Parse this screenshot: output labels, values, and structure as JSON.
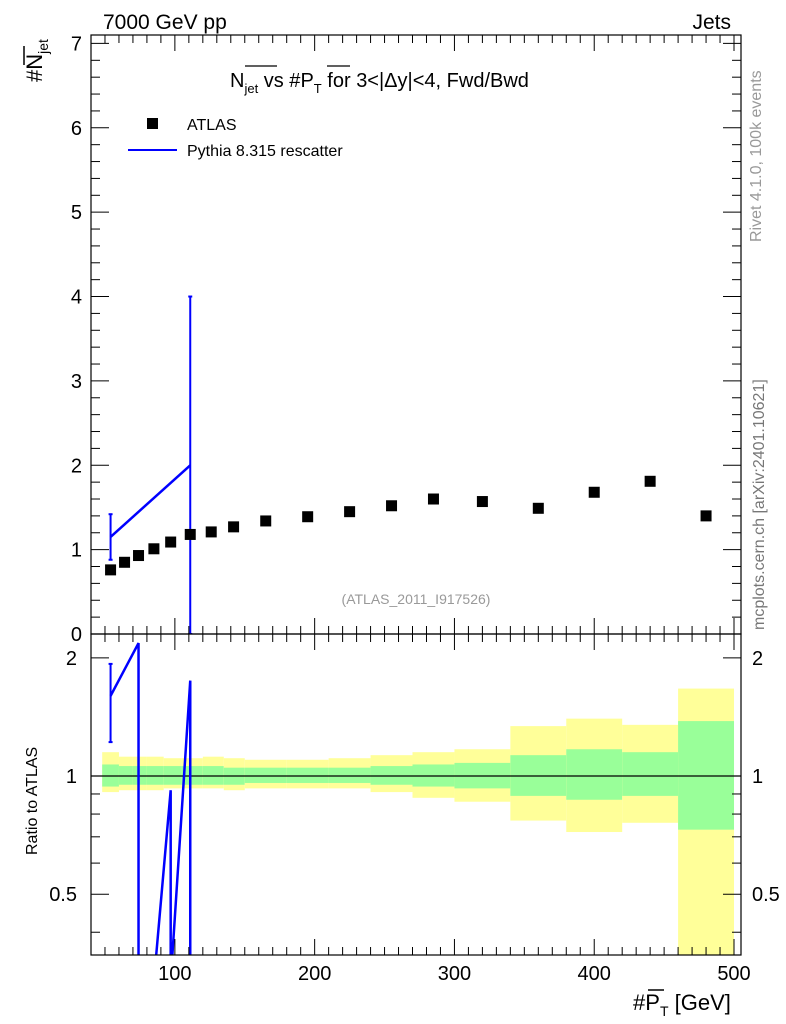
{
  "header": {
    "left": "7000 GeV pp",
    "right": "Jets"
  },
  "side_labels": {
    "rivet": "Rivet 4.1.0,  100k events",
    "mcplots": "mcplots.cern.ch [arXiv:2401.10621]"
  },
  "colors": {
    "data": "#000000",
    "mc": "#0000ff",
    "band_inner": "#99ff99",
    "band_outer": "#ffff99",
    "watermark": "#999999"
  },
  "chart_data": {
    "type": "scatter",
    "analysis_label": "(ATLAS_2011_I917526)",
    "title": {
      "hash1": "#",
      "nbar": "N",
      "nbar_sub": "jet",
      "mid": " vs #",
      "pbar": "P",
      "pbar_sub": "T",
      "tail": " for 3<|Δy|<4, Fwd/Bwd"
    },
    "ylabel": {
      "hash": "#",
      "n": "N",
      "sub": "jet"
    },
    "xlabel": {
      "hash": "#",
      "p": "P",
      "sub": "T",
      "unit": " [GeV]"
    },
    "ratio_ylabel": "Ratio to ATLAS",
    "xlim": [
      40,
      505
    ],
    "ylim": [
      0,
      7.1
    ],
    "ratio_ylim": [
      0.35,
      2.3
    ],
    "x_ticks": [
      100,
      200,
      300,
      400,
      500
    ],
    "y_ticks": [
      0,
      1,
      2,
      3,
      4,
      5,
      6,
      7
    ],
    "ratio_ticks": [
      0.5,
      1,
      2
    ],
    "legend": [
      {
        "label": "ATLAS",
        "kind": "marker"
      },
      {
        "label": "Pythia 8.315 rescatter",
        "kind": "line"
      }
    ],
    "data_series": {
      "name": "ATLAS",
      "x": [
        54,
        64,
        74,
        85,
        97,
        111,
        126,
        142,
        165,
        195,
        225,
        255,
        285,
        320,
        360,
        400,
        440,
        480
      ],
      "y": [
        0.76,
        0.85,
        0.93,
        1.01,
        1.09,
        1.18,
        1.21,
        1.27,
        1.34,
        1.39,
        1.45,
        1.52,
        1.6,
        1.57,
        1.49,
        1.68,
        1.81,
        1.4
      ],
      "x_low": [
        48,
        60,
        70,
        80,
        92,
        105,
        120,
        135,
        150,
        180,
        210,
        240,
        270,
        300,
        340,
        380,
        420,
        460
      ],
      "x_high": [
        60,
        70,
        80,
        92,
        105,
        120,
        135,
        150,
        180,
        210,
        240,
        270,
        300,
        340,
        380,
        420,
        460,
        500
      ],
      "band_inner": [
        [
          0.94,
          1.07
        ],
        [
          0.95,
          1.06
        ],
        [
          0.95,
          1.06
        ],
        [
          0.95,
          1.06
        ],
        [
          0.95,
          1.06
        ],
        [
          0.95,
          1.06
        ],
        [
          0.95,
          1.06
        ],
        [
          0.95,
          1.05
        ],
        [
          0.96,
          1.05
        ],
        [
          0.96,
          1.05
        ],
        [
          0.96,
          1.05
        ],
        [
          0.95,
          1.06
        ],
        [
          0.94,
          1.07
        ],
        [
          0.93,
          1.08
        ],
        [
          0.89,
          1.13
        ],
        [
          0.87,
          1.17
        ],
        [
          0.89,
          1.15
        ],
        [
          0.73,
          1.38
        ]
      ],
      "band_outer": [
        [
          0.91,
          1.15
        ],
        [
          0.92,
          1.12
        ],
        [
          0.92,
          1.12
        ],
        [
          0.92,
          1.12
        ],
        [
          0.93,
          1.11
        ],
        [
          0.93,
          1.11
        ],
        [
          0.93,
          1.12
        ],
        [
          0.92,
          1.11
        ],
        [
          0.93,
          1.1
        ],
        [
          0.93,
          1.1
        ],
        [
          0.93,
          1.11
        ],
        [
          0.91,
          1.13
        ],
        [
          0.88,
          1.15
        ],
        [
          0.86,
          1.17
        ],
        [
          0.77,
          1.34
        ],
        [
          0.72,
          1.4
        ],
        [
          0.76,
          1.35
        ],
        [
          0.3,
          1.67
        ]
      ]
    },
    "mc_series": {
      "name": "Pythia 8.315 rescatter",
      "x": [
        54,
        111
      ],
      "y": [
        1.15,
        2.0
      ],
      "err_low": [
        0.88,
        0.0
      ],
      "err_high": [
        1.42,
        4.0
      ]
    },
    "ratio_series": {
      "x": [
        54,
        74,
        74,
        85,
        85,
        97,
        97,
        111,
        111,
        126
      ],
      "y": [
        1.6,
        2.18,
        0.3,
        0.3,
        0.3,
        0.92,
        0.3,
        1.75,
        0.3,
        0.3
      ],
      "err_x": [
        54
      ],
      "err_low": [
        1.22
      ],
      "err_high": [
        1.93
      ]
    }
  }
}
